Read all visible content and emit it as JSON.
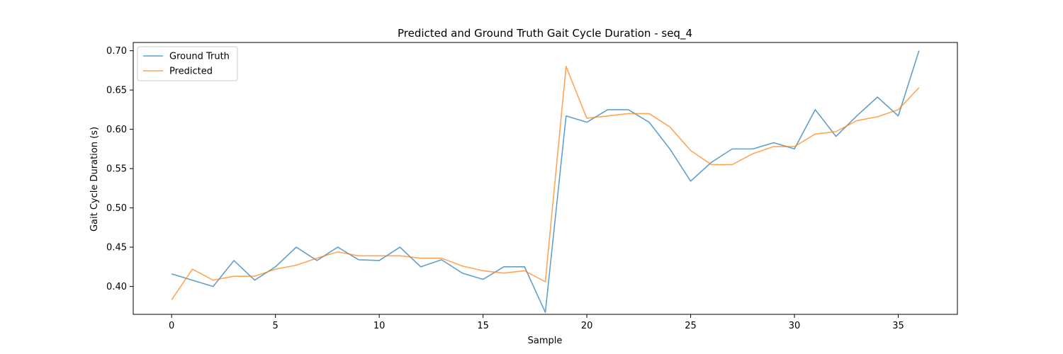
{
  "chart_data": {
    "type": "line",
    "title": "Predicted and Ground Truth Gait Cycle Duration - seq_4",
    "xlabel": "Sample",
    "ylabel": "Gait Cycle Duration (s)",
    "xlim": [
      -1.85,
      37.85
    ],
    "ylim": [
      0.3645,
      0.7105
    ],
    "xticks": [
      0,
      5,
      10,
      15,
      20,
      25,
      30,
      35
    ],
    "yticks": [
      0.4,
      0.45,
      0.5,
      0.55,
      0.6,
      0.65,
      0.7
    ],
    "ytick_labels": [
      "0.40",
      "0.45",
      "0.50",
      "0.55",
      "0.60",
      "0.65",
      "0.70"
    ],
    "grid": false,
    "legend_position": "top-left",
    "x": [
      0,
      1,
      2,
      3,
      4,
      5,
      6,
      7,
      8,
      9,
      10,
      11,
      12,
      13,
      14,
      15,
      16,
      17,
      18,
      19,
      20,
      21,
      22,
      23,
      24,
      25,
      26,
      27,
      28,
      29,
      30,
      31,
      32,
      33,
      34,
      35,
      36
    ],
    "series": [
      {
        "name": "Ground Truth",
        "color": "#1f77b4",
        "values": [
          0.416,
          0.408,
          0.4,
          0.433,
          0.408,
          0.425,
          0.45,
          0.433,
          0.45,
          0.434,
          0.433,
          0.45,
          0.425,
          0.434,
          0.417,
          0.409,
          0.425,
          0.425,
          0.367,
          0.617,
          0.609,
          0.625,
          0.625,
          0.609,
          0.575,
          0.534,
          0.558,
          0.575,
          0.575,
          0.583,
          0.575,
          0.625,
          0.591,
          0.617,
          0.641,
          0.617,
          0.7
        ]
      },
      {
        "name": "Predicted",
        "color": "#ff7f0e",
        "values": [
          0.383,
          0.422,
          0.408,
          0.413,
          0.413,
          0.422,
          0.427,
          0.436,
          0.444,
          0.439,
          0.439,
          0.439,
          0.436,
          0.436,
          0.426,
          0.42,
          0.417,
          0.42,
          0.406,
          0.68,
          0.614,
          0.617,
          0.62,
          0.62,
          0.603,
          0.573,
          0.555,
          0.555,
          0.569,
          0.578,
          0.578,
          0.594,
          0.597,
          0.611,
          0.616,
          0.625,
          0.653
        ]
      }
    ]
  }
}
